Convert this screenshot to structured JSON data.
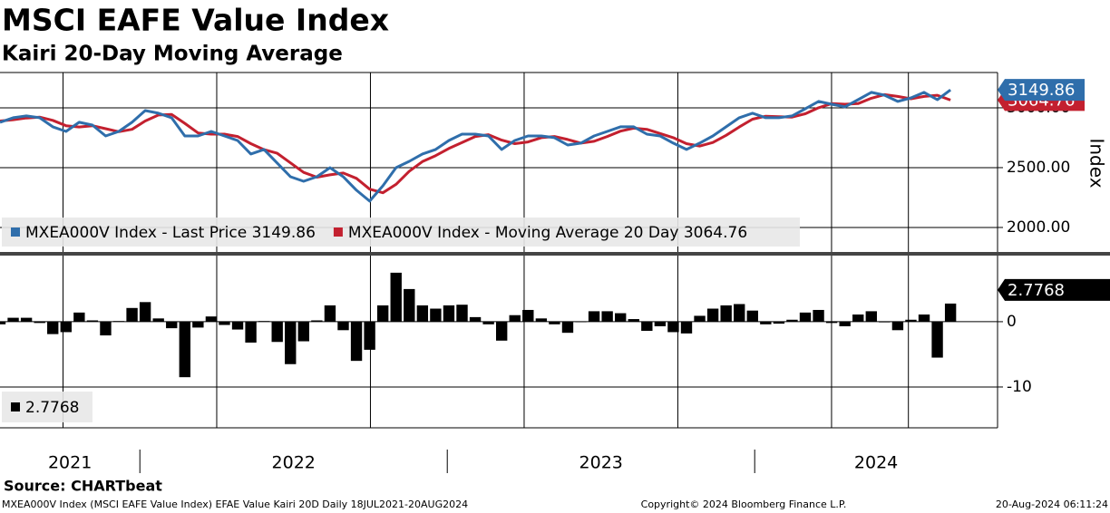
{
  "chart_data": [
    {
      "type": "line",
      "title": "MSCI EAFE Value Index",
      "subtitle": "Kairi 20-Day Moving Average",
      "y_label": "Index",
      "x_range": [
        2021.545,
        2024.637
      ],
      "xlim": [
        2021.545,
        2024.79
      ],
      "xticks": [
        2022,
        2023,
        2024
      ],
      "year_labels": [
        "2021",
        "2022",
        "2023",
        "2024"
      ],
      "xgrid": [
        2021.75,
        2022.25,
        2022.75,
        2023.25,
        2023.75,
        2024.25,
        2024.5
      ],
      "ylim": [
        1780,
        3295
      ],
      "yticks": [
        {
          "value": 2000,
          "label": "2000.00"
        },
        {
          "value": 2500,
          "label": "2500.00"
        },
        {
          "value": 3000,
          "label": "3000.00"
        }
      ],
      "grid": true,
      "series": [
        {
          "name": "MXEA000V Index - Last Price 3149.86",
          "color": "#2f6eab",
          "values": [
            2879,
            2917,
            2932,
            2917,
            2841,
            2803,
            2879,
            2856,
            2765,
            2803,
            2879,
            2977,
            2955,
            2917,
            2765,
            2765,
            2803,
            2765,
            2727,
            2614,
            2652,
            2538,
            2424,
            2386,
            2424,
            2500,
            2424,
            2311,
            2220,
            2348,
            2500,
            2553,
            2614,
            2652,
            2727,
            2780,
            2780,
            2765,
            2652,
            2727,
            2765,
            2765,
            2750,
            2689,
            2705,
            2765,
            2803,
            2841,
            2841,
            2780,
            2765,
            2705,
            2652,
            2705,
            2765,
            2841,
            2917,
            2955,
            2917,
            2917,
            2932,
            2992,
            3053,
            3030,
            3008,
            3068,
            3129,
            3106,
            3053,
            3083,
            3129,
            3068,
            3149.86
          ]
        },
        {
          "name": "MXEA000V Index - Moving Average 20 Day 3064.76",
          "color": "#c3202f",
          "values": [
            2890,
            2900,
            2915,
            2922,
            2895,
            2850,
            2840,
            2850,
            2825,
            2800,
            2820,
            2890,
            2940,
            2945,
            2870,
            2790,
            2780,
            2780,
            2760,
            2700,
            2650,
            2620,
            2540,
            2460,
            2420,
            2440,
            2455,
            2410,
            2320,
            2290,
            2360,
            2470,
            2550,
            2600,
            2660,
            2710,
            2760,
            2775,
            2730,
            2700,
            2715,
            2750,
            2760,
            2735,
            2705,
            2720,
            2760,
            2805,
            2830,
            2820,
            2785,
            2750,
            2700,
            2680,
            2710,
            2770,
            2840,
            2905,
            2930,
            2925,
            2922,
            2950,
            3000,
            3035,
            3030,
            3035,
            3080,
            3110,
            3095,
            3075,
            3095,
            3105,
            3064.76
          ]
        }
      ]
    },
    {
      "type": "bar",
      "ylim": [
        -16.25,
        10.4
      ],
      "yticks": [
        -10,
        0
      ],
      "color": "#000000",
      "values": [
        -0.4,
        0.6,
        0.6,
        -0.2,
        -1.9,
        -1.6,
        1.4,
        0.2,
        -2.1,
        0.1,
        2.1,
        3.0,
        0.5,
        -1.0,
        -8.5,
        -0.9,
        0.8,
        -0.5,
        -1.2,
        -3.2,
        0.1,
        -3.1,
        -6.5,
        -3.0,
        0.2,
        2.5,
        -1.3,
        -6,
        -4.3,
        2.5,
        7.5,
        5,
        2.5,
        2.0,
        2.5,
        2.6,
        0.7,
        -0.4,
        -2.9,
        1.0,
        1.8,
        0.5,
        -0.4,
        -1.7,
        0.0,
        1.6,
        1.6,
        1.3,
        0.4,
        -1.4,
        -0.7,
        -1.6,
        -1.8,
        0.9,
        2.0,
        2.5,
        2.7,
        1.7,
        -0.4,
        -0.3,
        0.3,
        1.4,
        1.8,
        -0.2,
        -0.7,
        1.1,
        1.6,
        -0.1,
        -1.3,
        0.3,
        1.1,
        -5.5,
        2.7768
      ]
    }
  ],
  "footer": {
    "source": "Source: CHARTbeat",
    "description": "MXEA000V Index (MSCI EAFE Value Index) EFAE Value Kairi 20D  Daily 18JUL2021-20AUG2024",
    "copyright": "Copyright© 2024 Bloomberg Finance L.P.",
    "timestamp": "20-Aug-2024 06:11:24"
  }
}
